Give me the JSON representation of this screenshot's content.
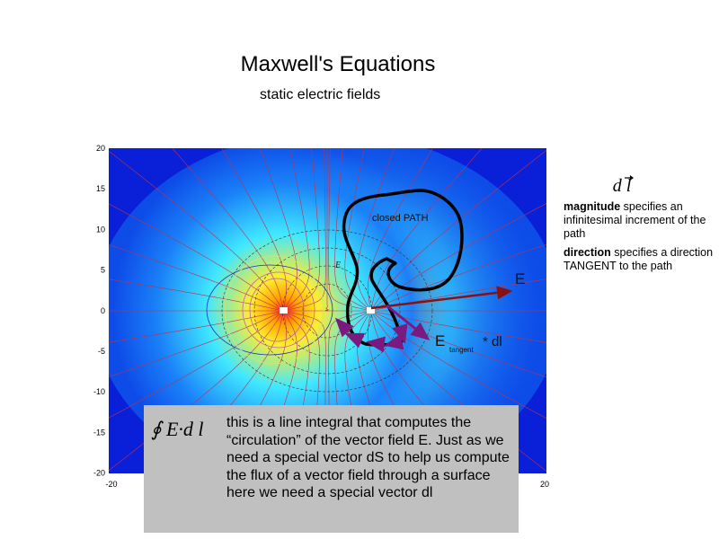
{
  "slide": {
    "title": "Maxwell's Equations",
    "subtitle": "static electric fields"
  },
  "plot": {
    "y_ticks": [
      "20",
      "15",
      "10",
      "5",
      "0",
      "-5",
      "-10",
      "-15",
      "-20"
    ],
    "x_ticks": [
      "-20",
      "20"
    ],
    "labels": {
      "closed_path": "closed PATH",
      "e_vec": "E",
      "e": "E",
      "e_tangent_main": "E",
      "e_tangent_sub": "tangent",
      "dl": "* dl"
    },
    "colors": {
      "background": "#0a1fd8",
      "field_lines": "#c03050",
      "path": "#000000",
      "e_arrow": "#8b1010",
      "tangent_arrow": "#7a1a80"
    },
    "charges_x": [
      -4,
      4
    ]
  },
  "side": {
    "symbol": "d l",
    "magnitude_bold": "magnitude",
    "magnitude_text": " specifies an infinitesimal increment of the path",
    "direction_bold": "direction",
    "direction_text": " specifies a direction TANGENT to the path"
  },
  "box": {
    "formula": "∮ E·d l",
    "text": "this is a line integral that computes the “circulation” of the vector field E.  Just as we need a special vector dS to help us compute the flux of a vector field through a surface here we need a special vector dl"
  }
}
